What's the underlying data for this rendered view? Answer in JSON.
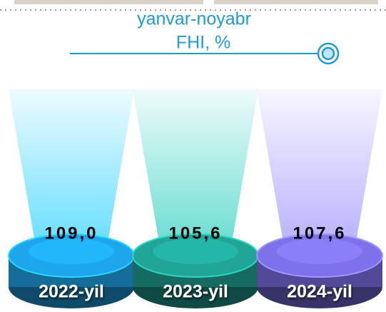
{
  "chart_data": {
    "type": "pedestal",
    "title": "yanvar-noyabr",
    "subtitle": "FHI, %",
    "categories": [
      "2022-yil",
      "2023-yil",
      "2024-yil"
    ],
    "values": [
      109.0,
      105.6,
      107.6
    ],
    "value_labels": [
      "109,0",
      "105,6",
      "107,6"
    ],
    "colors": [
      "#1ea6ec",
      "#21a596",
      "#7d72ea"
    ]
  }
}
